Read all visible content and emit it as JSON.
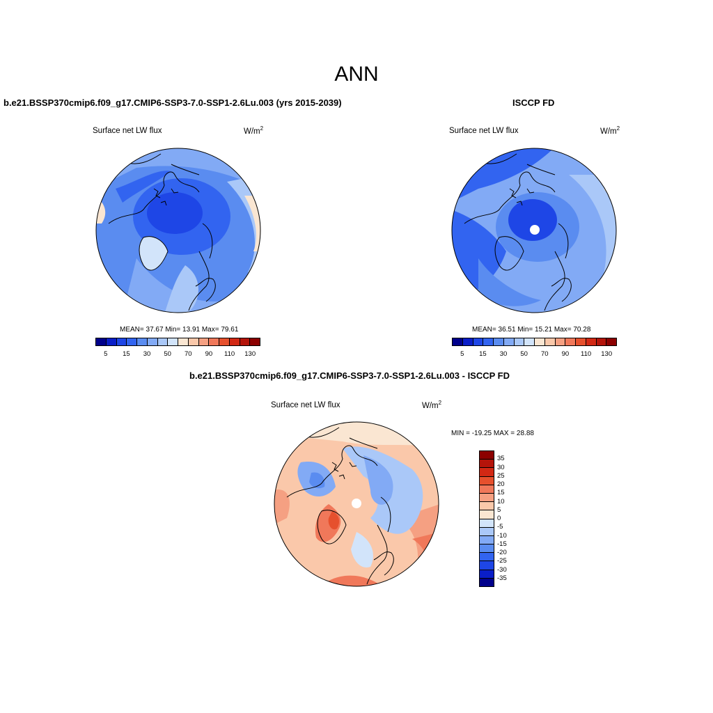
{
  "figure": {
    "season": "ANN"
  },
  "panels": {
    "model": {
      "title": "b.e21.BSSP370cmip6.f09_g17.CMIP6-SSP3-7.0-SSP1-2.6Lu.003 (yrs 2015-2039)",
      "variable": "Surface net LW flux",
      "units_base": "W/m",
      "units_exp": "2",
      "stats": "MEAN=  37.67  Min=  13.91  Max=  79.61",
      "mean": 37.67,
      "min": 13.91,
      "max": 79.61
    },
    "obs": {
      "title": "ISCCP FD",
      "variable": "Surface net LW flux",
      "units_base": "W/m",
      "units_exp": "2",
      "stats": "MEAN=  36.51  Min=  15.21  Max=  70.28",
      "mean": 36.51,
      "min": 15.21,
      "max": 70.28
    },
    "diff": {
      "title": "b.e21.BSSP370cmip6.f09_g17.CMIP6-SSP3-7.0-SSP1-2.6Lu.003 - ISCCP FD",
      "variable": "Surface net LW flux",
      "units_base": "W/m",
      "units_exp": "2",
      "stats": "MIN = -19.25 MAX =  28.88",
      "min": -19.25,
      "max": 28.88
    }
  },
  "colorbar_abs": {
    "tick_labels": [
      "5",
      "15",
      "30",
      "50",
      "70",
      "90",
      "110",
      "130"
    ],
    "colors": [
      "#00008b",
      "#0a1ec8",
      "#1e46e6",
      "#3264f0",
      "#5a8cf0",
      "#82aaf5",
      "#aac8f8",
      "#d2e4fa",
      "#fae6d2",
      "#fac8aa",
      "#f5a082",
      "#f0785a",
      "#e6502d",
      "#d22814",
      "#b4140a",
      "#8c0000"
    ]
  },
  "colorbar_diff": {
    "tick_labels": [
      "35",
      "30",
      "25",
      "20",
      "15",
      "10",
      "5",
      "0",
      "-5",
      "-10",
      "-15",
      "-20",
      "-25",
      "-30",
      "-35"
    ],
    "colors": [
      "#8c0000",
      "#b4140a",
      "#d22814",
      "#e6502d",
      "#f0785a",
      "#f5a082",
      "#fac8aa",
      "#fae6d2",
      "#d2e4fa",
      "#aac8f8",
      "#82aaf5",
      "#5a8cf0",
      "#3264f0",
      "#1e46e6",
      "#0a1ec8",
      "#00008b"
    ]
  }
}
